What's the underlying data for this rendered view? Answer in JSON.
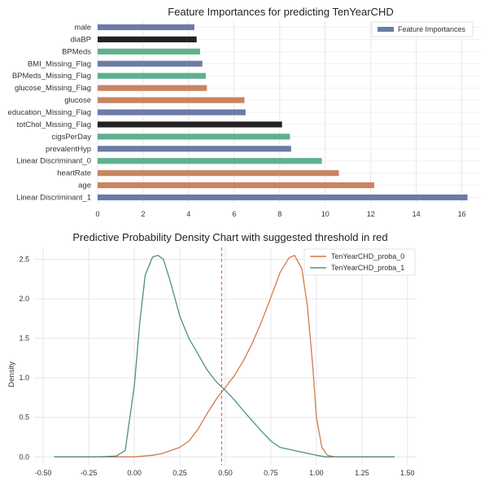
{
  "chart_data": [
    {
      "type": "bar",
      "orientation": "horizontal",
      "title": "Feature Importances for predicting TenYearCHD",
      "xlabel": "",
      "ylabel": "",
      "xlim": [
        0,
        16.8
      ],
      "xticks": [
        0,
        2,
        4,
        6,
        8,
        10,
        12,
        14,
        16
      ],
      "grid": true,
      "legend": {
        "placement": "top-right",
        "entries": [
          "Feature Importances"
        ],
        "color": "#6c7aa8"
      },
      "categories": [
        "male",
        "diaBP",
        "BPMeds",
        "BMI_Missing_Flag",
        "BPMeds_Missing_Flag",
        "glucose_Missing_Flag",
        "glucose",
        "education_Missing_Flag",
        "totChol_Missing_Flag",
        "cigsPerDay",
        "prevalentHyp",
        "Linear Discriminant_0",
        "heartRate",
        "age",
        "Linear Discriminant_1"
      ],
      "values": [
        4.25,
        4.35,
        4.5,
        4.6,
        4.75,
        4.8,
        6.45,
        6.5,
        8.1,
        8.45,
        8.5,
        9.85,
        10.6,
        12.15,
        16.25
      ],
      "bar_colors": [
        "#6c7aa8",
        "#222222",
        "#5fb08f",
        "#6c7aa8",
        "#5fb08f",
        "#c98462",
        "#c98462",
        "#6c7aa8",
        "#222222",
        "#5fb08f",
        "#6c7aa8",
        "#5fb08f",
        "#c98462",
        "#c98462",
        "#6c7aa8"
      ]
    },
    {
      "type": "line",
      "title": "Predictive Probability Density Chart with suggested threshold in red",
      "xlabel": "",
      "ylabel": "Density",
      "xlim": [
        -0.55,
        1.55
      ],
      "ylim": [
        -0.1,
        2.65
      ],
      "xticks": [
        -0.5,
        -0.25,
        0.0,
        0.25,
        0.5,
        0.75,
        1.0,
        1.25,
        1.5
      ],
      "xtick_labels": [
        "-0.50",
        "-0.25",
        "0.00",
        "0.25",
        "0.50",
        "0.75",
        "1.00",
        "1.25",
        "1.50"
      ],
      "yticks": [
        0.0,
        0.5,
        1.0,
        1.5,
        2.0,
        2.5
      ],
      "ytick_labels": [
        "0.0",
        "0.5",
        "1.0",
        "1.5",
        "2.0",
        "2.5"
      ],
      "grid": true,
      "threshold": 0.48,
      "threshold_color": "#d0605e",
      "legend": {
        "placement": "top-right"
      },
      "series": [
        {
          "name": "TenYearCHD_proba_0",
          "color": "#d27a4b",
          "x": [
            -0.44,
            0.0,
            0.05,
            0.1,
            0.15,
            0.2,
            0.25,
            0.3,
            0.35,
            0.4,
            0.45,
            0.5,
            0.55,
            0.6,
            0.65,
            0.7,
            0.75,
            0.8,
            0.85,
            0.88,
            0.92,
            0.95,
            0.98,
            1.0,
            1.03,
            1.06,
            1.1,
            1.2,
            1.43
          ],
          "y": [
            0.0,
            0.0,
            0.01,
            0.02,
            0.04,
            0.08,
            0.12,
            0.2,
            0.35,
            0.55,
            0.73,
            0.88,
            1.03,
            1.22,
            1.45,
            1.72,
            2.02,
            2.33,
            2.52,
            2.55,
            2.38,
            1.92,
            1.15,
            0.5,
            0.12,
            0.02,
            0.0,
            0.0,
            0.0
          ]
        },
        {
          "name": "TenYearCHD_proba_1",
          "color": "#4f8f82",
          "x": [
            -0.44,
            -0.2,
            -0.1,
            -0.05,
            0.0,
            0.03,
            0.06,
            0.1,
            0.13,
            0.16,
            0.2,
            0.25,
            0.3,
            0.35,
            0.4,
            0.45,
            0.5,
            0.55,
            0.6,
            0.65,
            0.7,
            0.75,
            0.8,
            0.9,
            1.0,
            1.05,
            1.43
          ],
          "y": [
            0.0,
            0.0,
            0.01,
            0.08,
            0.9,
            1.7,
            2.3,
            2.53,
            2.55,
            2.5,
            2.2,
            1.78,
            1.5,
            1.3,
            1.1,
            0.95,
            0.84,
            0.72,
            0.58,
            0.45,
            0.32,
            0.2,
            0.12,
            0.07,
            0.02,
            0.0,
            0.0
          ]
        }
      ]
    }
  ]
}
